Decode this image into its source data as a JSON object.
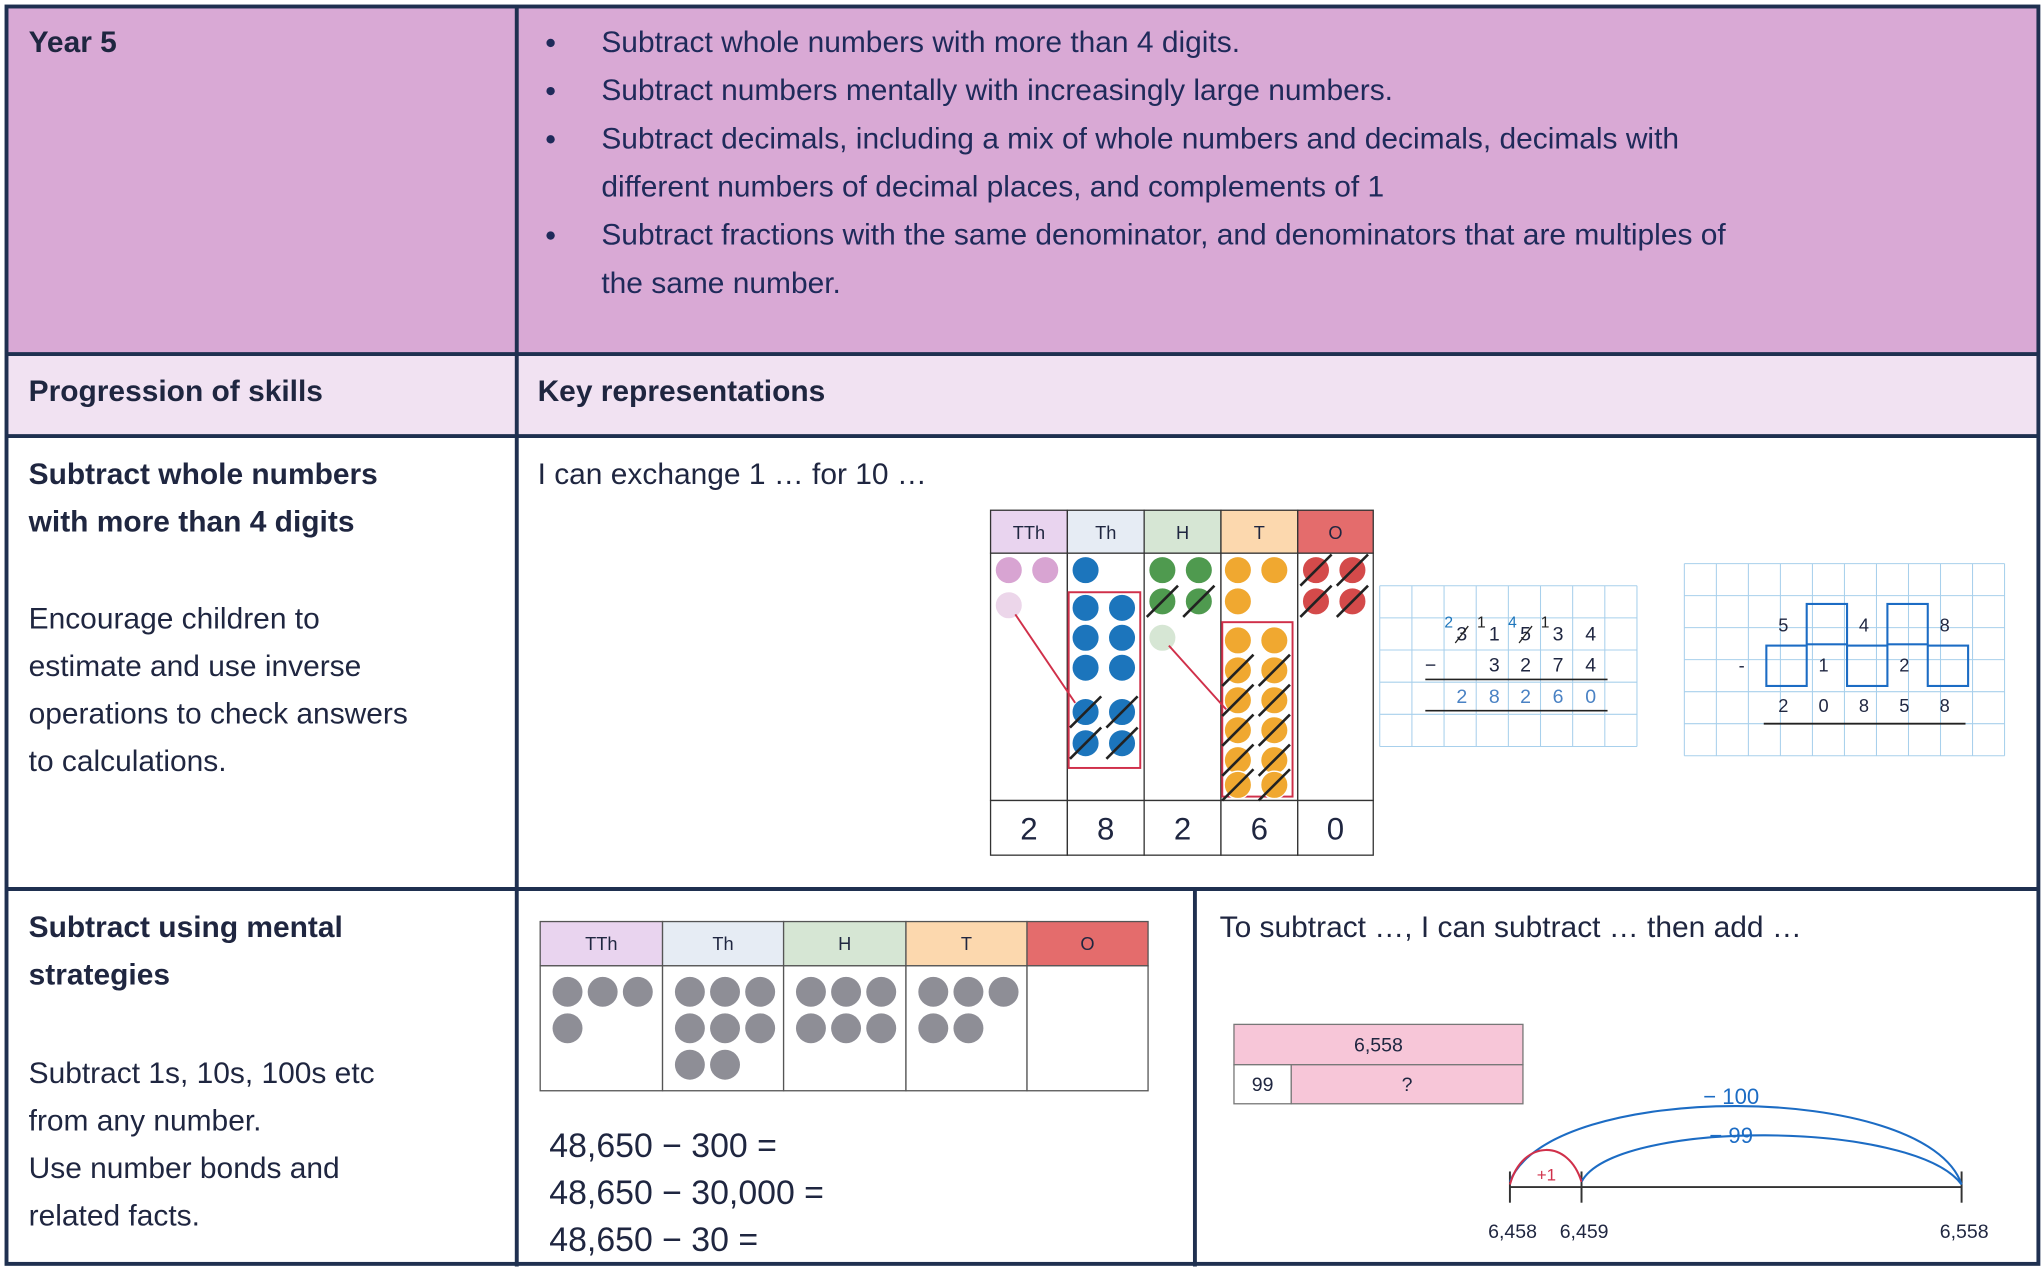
{
  "header": {
    "year": "Year 5",
    "objectives": [
      [
        "Subtract whole numbers with more than 4 digits."
      ],
      [
        "Subtract numbers mentally with increasingly large numbers."
      ],
      [
        "Subtract decimals, including a mix of whole numbers and decimals, decimals with",
        "different numbers of decimal places, and complements of 1"
      ],
      [
        "Subtract fractions with the same denominator, and denominators that are multiples of",
        "the same number."
      ]
    ]
  },
  "columns": {
    "skills": "Progression of skills",
    "representations": "Key representations"
  },
  "rows": [
    {
      "skill": [
        "Subtract whole numbers",
        "with more than 4 digits"
      ],
      "notes": [
        "Encourage children to",
        "estimate and use inverse",
        "operations to check answers",
        "to calculations."
      ],
      "prompt": "I can exchange 1 … for 10 …",
      "place_value": {
        "headers": [
          "TTh",
          "Th",
          "H",
          "T",
          "O"
        ],
        "digits": [
          "2",
          "8",
          "2",
          "6",
          "0"
        ]
      },
      "column_method": {
        "exchanges": [
          "2",
          "1",
          "4",
          "1"
        ],
        "top": [
          "3",
          "1",
          "5",
          "3",
          "4"
        ],
        "operator": "−",
        "subtrahend": [
          "3",
          "2",
          "7",
          "4"
        ],
        "answer": [
          "2",
          "8",
          "2",
          "6",
          "0"
        ]
      },
      "grid_method": {
        "top": [
          "5",
          "4",
          "8"
        ],
        "operator": "-",
        "middle": [
          "1",
          "2"
        ],
        "answer": [
          "2",
          "0",
          "8",
          "5",
          "8"
        ]
      }
    },
    {
      "skill": [
        "Subtract using mental",
        "strategies"
      ],
      "notes": [
        "Subtract 1s, 10s, 100s etc",
        "from any number.",
        "Use number bonds and",
        "related facts."
      ],
      "place_value": {
        "headers": [
          "TTh",
          "Th",
          "H",
          "T",
          "O"
        ]
      },
      "equations": [
        "48,650 − 300 =",
        "48,650 − 30,000 =",
        "48,650 − 30 ="
      ],
      "prompt": "To subtract …, I can subtract … then add …",
      "bar_model": {
        "whole": "6,558",
        "part": "99",
        "unknown": "?"
      },
      "number_line": {
        "jumps": [
          "− 100",
          "− 99",
          "+1"
        ],
        "labels": [
          "6,458",
          "6,459",
          "6,558"
        ]
      }
    }
  ]
}
